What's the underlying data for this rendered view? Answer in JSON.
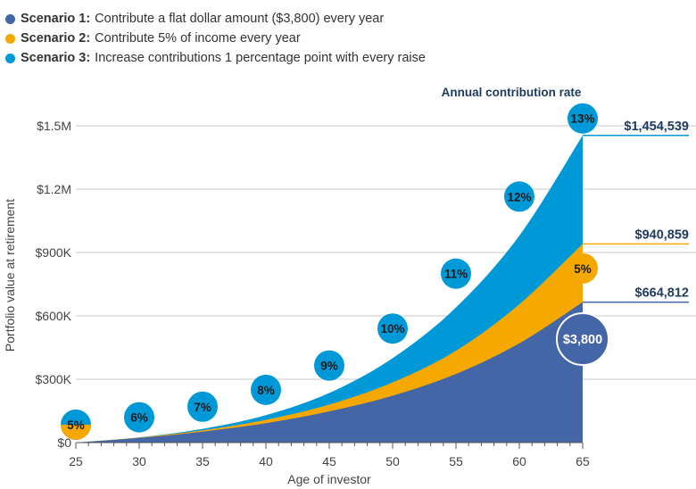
{
  "legend": [
    {
      "bold": "Scenario 1:",
      "text": "Contribute a flat dollar amount ($3,800) every year",
      "color": "#4466a6"
    },
    {
      "bold": "Scenario 2:",
      "text": "Contribute 5% of income every year",
      "color": "#f5a800"
    },
    {
      "bold": "Scenario 3:",
      "text": "Increase contributions 1 percentage point with every raise",
      "color": "#0099d8"
    }
  ],
  "chart_data": {
    "type": "area",
    "stacked_overlapping": true,
    "xlabel": "Age of investor",
    "ylabel": "Portfolio value at retirement",
    "xlim": [
      25,
      65
    ],
    "ylim": [
      0,
      1500000
    ],
    "x_ticks": [
      "25",
      "30",
      "35",
      "40",
      "45",
      "50",
      "55",
      "60",
      "65"
    ],
    "y_ticks": [
      {
        "value": 0,
        "label": "$0"
      },
      {
        "value": 300000,
        "label": "$300K"
      },
      {
        "value": 600000,
        "label": "$600K"
      },
      {
        "value": 900000,
        "label": "$900K"
      },
      {
        "value": 1200000,
        "label": "$1.2M"
      },
      {
        "value": 1500000,
        "label": "$1.5M"
      }
    ],
    "series": [
      {
        "name": "Scenario 3",
        "color": "#0099d8",
        "end_value": 1454539,
        "end_label": "$1,454,539",
        "x": [
          25,
          30,
          35,
          40,
          45,
          50,
          55,
          60,
          65
        ],
        "values": [
          0,
          25000,
          65000,
          130000,
          235000,
          400000,
          640000,
          980000,
          1454539
        ]
      },
      {
        "name": "Scenario 2",
        "color": "#f5a800",
        "end_value": 940859,
        "end_label": "$940,859",
        "x": [
          25,
          30,
          35,
          40,
          45,
          50,
          55,
          60,
          65
        ],
        "values": [
          0,
          24000,
          58000,
          108000,
          180000,
          285000,
          435000,
          655000,
          940859
        ]
      },
      {
        "name": "Scenario 1",
        "color": "#4466a6",
        "end_value": 664812,
        "end_label": "$664,812",
        "x": [
          25,
          30,
          35,
          40,
          45,
          50,
          55,
          60,
          65
        ],
        "values": [
          0,
          22000,
          52000,
          92000,
          148000,
          222000,
          325000,
          470000,
          664812
        ]
      }
    ],
    "annotation_title": "Annual contribution rate",
    "rate_bubbles": [
      {
        "x": 25,
        "y": 85000,
        "label": "5%",
        "split": true
      },
      {
        "x": 30,
        "y": 120000,
        "label": "6%"
      },
      {
        "x": 35,
        "y": 170000,
        "label": "7%"
      },
      {
        "x": 40,
        "y": 250000,
        "label": "8%"
      },
      {
        "x": 45,
        "y": 365000,
        "label": "9%"
      },
      {
        "x": 50,
        "y": 540000,
        "label": "10%"
      },
      {
        "x": 55,
        "y": 800000,
        "label": "11%"
      },
      {
        "x": 60,
        "y": 1165000,
        "label": "12%"
      },
      {
        "x": 65,
        "y": 1535000,
        "label": "13%"
      }
    ],
    "end_bubbles": [
      {
        "x": 65,
        "y": 825000,
        "label": "5%",
        "color": "#f5a800"
      },
      {
        "x": 65,
        "y": 490000,
        "label": "$3,800",
        "color": "#4466a6",
        "large": true
      }
    ]
  }
}
